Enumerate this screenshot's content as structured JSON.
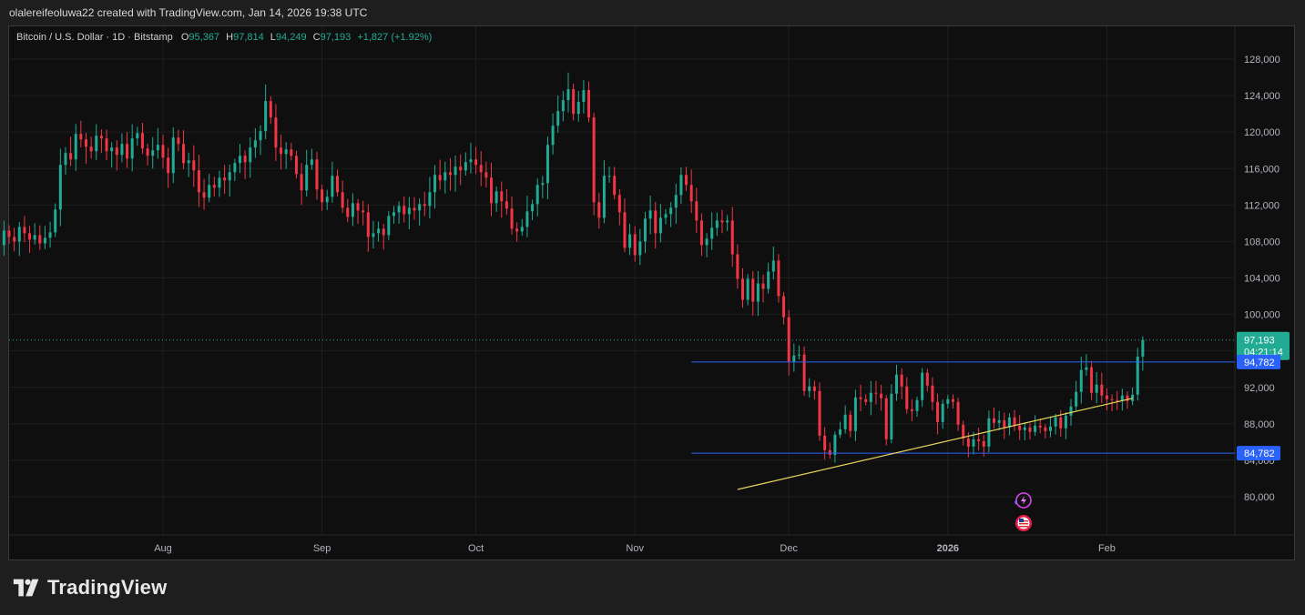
{
  "header": {
    "attribution": "olalereifeoluwa22 created with TradingView.com, Jan 14, 2026 19:38 UTC"
  },
  "legend": {
    "symbol": "Bitcoin / U.S. Dollar · 1D · Bitstamp",
    "open_label": "O",
    "open": "95,367",
    "high_label": "H",
    "high": "97,814",
    "low_label": "L",
    "low": "94,249",
    "close_label": "C",
    "close": "97,193",
    "change": "+1,827 (+1.92%)"
  },
  "price_tags": {
    "last_price": "97,193",
    "countdown": "04:21:14",
    "upper_level": "94,782",
    "lower_level": "84,782"
  },
  "brand": {
    "name": "TradingView"
  },
  "colors": {
    "up": "#22ab94",
    "down": "#f23645",
    "level_line": "#2962ff",
    "trendline": "#e8d55a",
    "background": "#0f0f0f",
    "grid": "#1f1f1f"
  },
  "icons": [
    "tradingview-logo-icon",
    "lightning-event-icon",
    "us-flag-event-icon"
  ],
  "chart_data": {
    "type": "candlestick",
    "title": "Bitcoin / U.S. Dollar · 1D · Bitstamp",
    "y_ticks": [
      80000,
      84000,
      88000,
      92000,
      96000,
      100000,
      104000,
      108000,
      112000,
      116000,
      120000,
      124000,
      128000
    ],
    "y_tick_labels": [
      "80,000",
      "84,000",
      "88,000",
      "92,000",
      "96,000",
      "100,000",
      "104,000",
      "108,000",
      "112,000",
      "116,000",
      "120,000",
      "124,000",
      "128,000"
    ],
    "ylim": [
      75000,
      131500
    ],
    "x_ticks": [
      {
        "label": "Aug",
        "date": "2025-08-01"
      },
      {
        "label": "Sep",
        "date": "2025-09-01"
      },
      {
        "label": "Oct",
        "date": "2025-10-01"
      },
      {
        "label": "Nov",
        "date": "2025-11-01"
      },
      {
        "label": "Dec",
        "date": "2025-12-01"
      },
      {
        "label": "2026",
        "date": "2026-01-01"
      },
      {
        "label": "Feb",
        "date": "2026-02-01"
      }
    ],
    "xlim": [
      "2025-07-02",
      "2026-02-24"
    ],
    "horizontal_levels": [
      94782,
      84782
    ],
    "last_price": 97193,
    "trendline": {
      "start": {
        "date": "2025-11-21",
        "value": 80800
      },
      "end": {
        "date": "2026-02-06",
        "value": 90800
      }
    },
    "closes": [
      109200,
      108500,
      108000,
      109600,
      108900,
      108200,
      108700,
      107800,
      108400,
      109000,
      111500,
      116400,
      117700,
      117000,
      119800,
      119200,
      118400,
      117900,
      119600,
      119300,
      117900,
      118300,
      117500,
      118700,
      117100,
      119300,
      119900,
      118200,
      117400,
      118000,
      118600,
      117200,
      115500,
      119400,
      118700,
      116600,
      116900,
      115800,
      113400,
      112800,
      114200,
      113900,
      115000,
      114700,
      115600,
      116600,
      117400,
      116700,
      118300,
      119100,
      120100,
      123400,
      121600,
      118300,
      117600,
      118100,
      117400,
      115400,
      113600,
      116400,
      117000,
      113700,
      112300,
      112900,
      115200,
      113400,
      111700,
      110700,
      112200,
      111400,
      111200,
      108500,
      108900,
      109400,
      108700,
      110800,
      111200,
      111900,
      111000,
      111700,
      111400,
      112100,
      111900,
      113400,
      115300,
      114700,
      115600,
      115300,
      116200,
      115800,
      116700,
      117000,
      116400,
      115600,
      115000,
      112200,
      113500,
      112400,
      111600,
      109400,
      109100,
      109600,
      111300,
      112100,
      114200,
      114400,
      118600,
      120700,
      122300,
      123500,
      124700,
      122000,
      123300,
      124600,
      121600,
      112300,
      110600,
      115200,
      115200,
      113100,
      111200,
      107300,
      108800,
      106500,
      108000,
      110500,
      111400,
      108900,
      110600,
      111000,
      111700,
      113100,
      115300,
      114200,
      112400,
      110300,
      107600,
      108300,
      109500,
      110300,
      110100,
      110300,
      106600,
      103900,
      101600,
      103900,
      101400,
      103400,
      102800,
      104700,
      105900,
      102000,
      99700,
      94800,
      95500,
      95600,
      91600,
      92100,
      91600,
      86700,
      85100,
      84600,
      86800,
      87400,
      89000,
      87200,
      90900,
      90700,
      90400,
      91400,
      91300,
      90800,
      86300,
      91300,
      93400,
      92100,
      89600,
      89400,
      90600,
      93600,
      92200,
      90400,
      88200,
      90200,
      90700,
      90400,
      87900,
      86400,
      85500,
      86300,
      86100,
      85500,
      88600,
      88100,
      88400,
      87600,
      88700,
      87800,
      87300,
      87600,
      87100,
      87800,
      87600,
      87200,
      87700,
      88700,
      87500,
      88900,
      89900,
      91500,
      93900,
      94200,
      91400,
      92300,
      91100,
      90700,
      90600,
      90500,
      91100,
      90500,
      91200,
      95367,
      97193
    ]
  }
}
